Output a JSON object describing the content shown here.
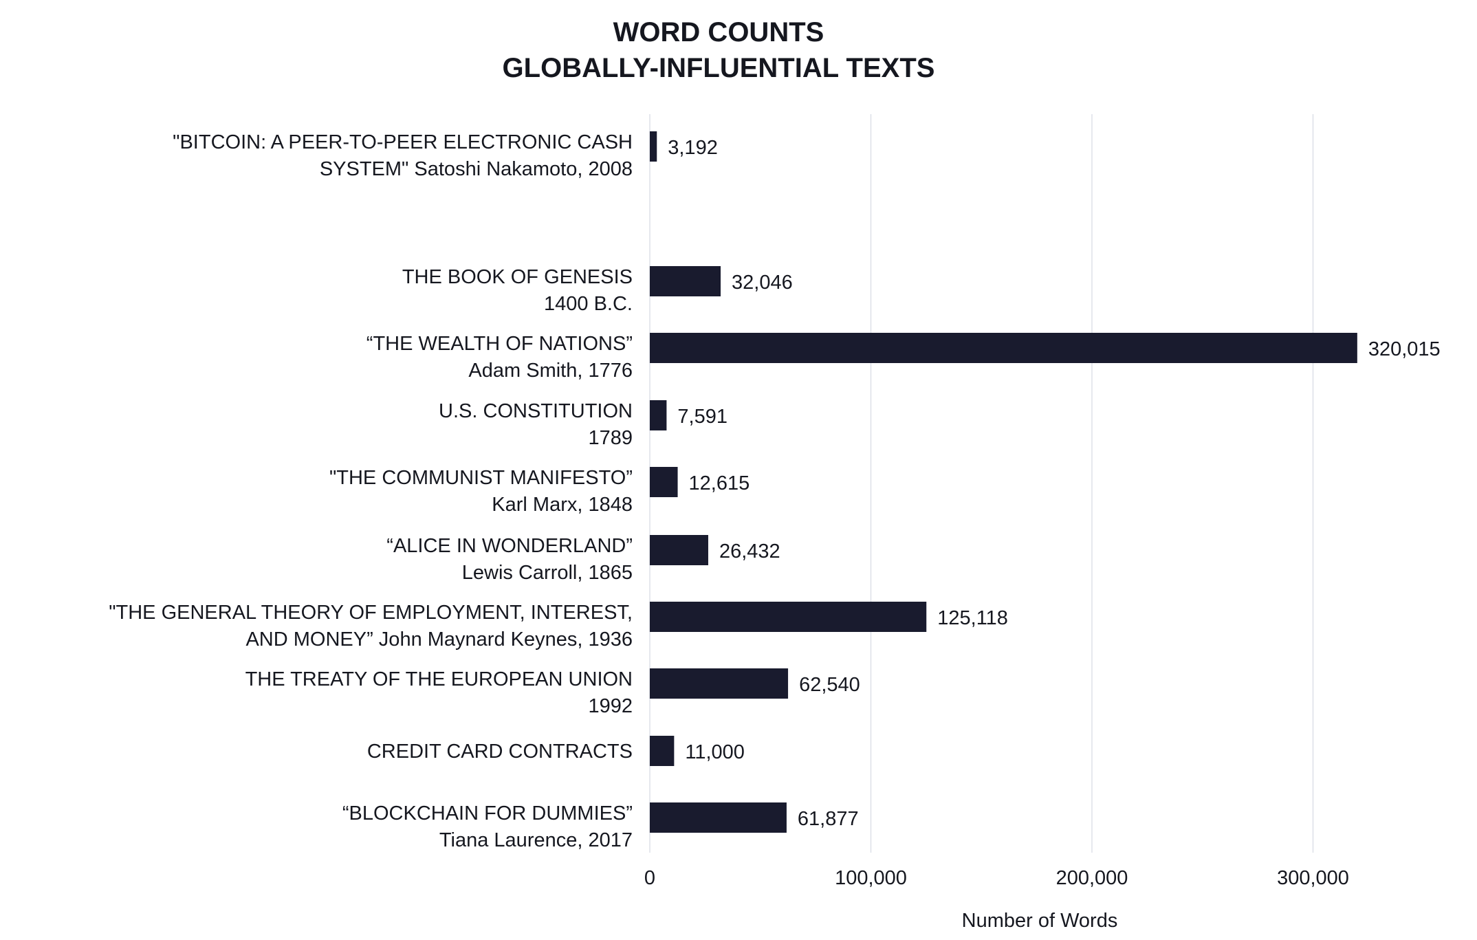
{
  "chart_data": {
    "type": "bar",
    "orientation": "horizontal",
    "title": [
      "WORD COUNTS",
      "GLOBALLY-INFLUENTIAL TEXTS"
    ],
    "xlabel": "Number of Words",
    "ylabel": "",
    "xlim": [
      0,
      360000
    ],
    "xticks": [
      0,
      100000,
      200000,
      300000
    ],
    "xtick_labels": [
      "0",
      "100,000",
      "200,000",
      "300,000"
    ],
    "grid": "vertical",
    "bar_color": "#191b2e",
    "grid_color": "#dde0e8",
    "categories": [
      [
        "\"BITCOIN: A PEER-TO-PEER ELECTRONIC CASH",
        "SYSTEM\" Satoshi Nakamoto, 2008"
      ],
      [
        "THE BOOK OF GENESIS",
        "1400 B.C."
      ],
      [
        "“THE WEALTH OF NATIONS”",
        "Adam Smith, 1776"
      ],
      [
        "U.S. CONSTITUTION",
        "1789"
      ],
      [
        "\"THE COMMUNIST MANIFESTO”",
        "Karl Marx, 1848"
      ],
      [
        "“ALICE IN WONDERLAND”",
        "Lewis Carroll, 1865"
      ],
      [
        "\"THE GENERAL THEORY OF EMPLOYMENT, INTEREST,",
        "AND MONEY” John Maynard Keynes, 1936"
      ],
      [
        "THE TREATY OF THE EUROPEAN UNION",
        "1992"
      ],
      [
        "CREDIT CARD CONTRACTS"
      ],
      [
        "“BLOCKCHAIN FOR DUMMIES”",
        "Tiana Laurence, 2017"
      ]
    ],
    "values": [
      3192,
      32046,
      320015,
      7591,
      12615,
      26432,
      125118,
      62540,
      11000,
      61877
    ],
    "data_labels": [
      "3,192",
      "32,046",
      "320,015",
      "7,591",
      "12,615",
      "26,432",
      "125,118",
      "62,540",
      "11,000",
      "61,877"
    ]
  }
}
